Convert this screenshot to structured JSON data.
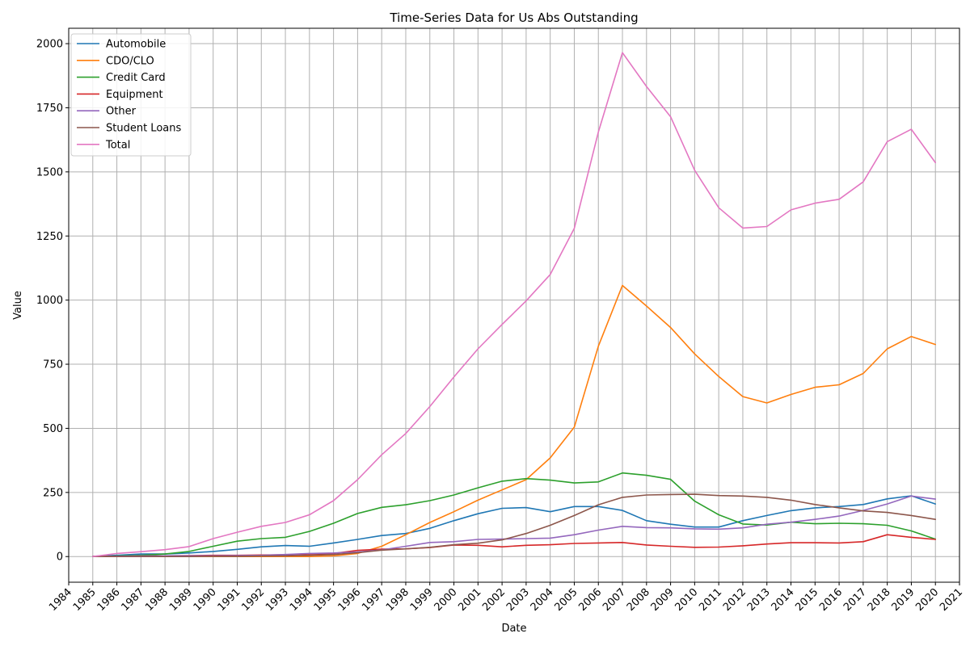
{
  "chart_data": {
    "type": "line",
    "title": "Time-Series Data for Us Abs Outstanding",
    "xlabel": "Date",
    "ylabel": "Value",
    "xlim": [
      1984,
      2021
    ],
    "ylim": [
      -100,
      2060
    ],
    "x_ticks": [
      "1984",
      "1985",
      "1986",
      "1987",
      "1988",
      "1989",
      "1990",
      "1991",
      "1992",
      "1993",
      "1994",
      "1995",
      "1996",
      "1997",
      "1998",
      "1999",
      "2000",
      "2001",
      "2002",
      "2003",
      "2004",
      "2005",
      "2006",
      "2007",
      "2008",
      "2009",
      "2010",
      "2011",
      "2012",
      "2013",
      "2014",
      "2015",
      "2016",
      "2017",
      "2018",
      "2019",
      "2020",
      "2021"
    ],
    "y_ticks": [
      0,
      250,
      500,
      750,
      1000,
      1250,
      1500,
      1750,
      2000
    ],
    "grid": true,
    "legend_position": "top-left",
    "x": [
      1985,
      1986,
      1987,
      1988,
      1989,
      1990,
      1991,
      1992,
      1993,
      1994,
      1995,
      1996,
      1997,
      1998,
      1999,
      2000,
      2001,
      2002,
      2003,
      2004,
      2005,
      2006,
      2007,
      2008,
      2009,
      2010,
      2011,
      2012,
      2013,
      2014,
      2015,
      2016,
      2017,
      2018,
      2019,
      2020
    ],
    "series": [
      {
        "name": "Automobile",
        "color": "#1f77b4",
        "values": [
          1,
          5,
          10,
          10,
          14,
          20,
          28,
          38,
          43,
          40,
          53,
          67,
          82,
          90,
          110,
          140,
          167,
          188,
          191,
          175,
          195,
          195,
          180,
          140,
          126,
          115,
          115,
          140,
          160,
          179,
          190,
          195,
          203,
          225,
          237,
          205
        ]
      },
      {
        "name": "CDO/CLO",
        "color": "#ff7f0e",
        "values": [
          0,
          0,
          0,
          0,
          0,
          0,
          0,
          0,
          0,
          0,
          3,
          12,
          40,
          85,
          133,
          175,
          220,
          260,
          300,
          385,
          505,
          820,
          1057,
          977,
          893,
          790,
          702,
          624,
          599,
          632,
          660,
          670,
          714,
          810,
          858,
          827
        ]
      },
      {
        "name": "Credit Card",
        "color": "#2ca02c",
        "values": [
          0,
          2,
          5,
          10,
          20,
          40,
          60,
          70,
          75,
          98,
          130,
          168,
          192,
          202,
          218,
          240,
          268,
          294,
          304,
          298,
          287,
          291,
          326,
          317,
          301,
          216,
          163,
          127,
          123,
          134,
          128,
          130,
          128,
          122,
          100,
          68
        ]
      },
      {
        "name": "Equipment",
        "color": "#d62728",
        "values": [
          0,
          1,
          2,
          3,
          4,
          5,
          5,
          6,
          7,
          10,
          12,
          24,
          29,
          30,
          35,
          45,
          44,
          38,
          44,
          46,
          51,
          53,
          55,
          45,
          40,
          36,
          37,
          42,
          49,
          54,
          54,
          53,
          58,
          85,
          75,
          67
        ]
      },
      {
        "name": "Other",
        "color": "#9467bd",
        "values": [
          0,
          1,
          2,
          3,
          3,
          3,
          4,
          5,
          8,
          12,
          14,
          18,
          26,
          40,
          55,
          58,
          67,
          68,
          70,
          72,
          85,
          103,
          118,
          113,
          112,
          108,
          107,
          112,
          126,
          134,
          145,
          158,
          180,
          205,
          236,
          224
        ]
      },
      {
        "name": "Student Loans",
        "color": "#8c564b",
        "values": [
          0,
          0,
          0,
          0,
          0,
          1,
          1,
          2,
          3,
          5,
          8,
          15,
          25,
          30,
          36,
          46,
          52,
          65,
          90,
          122,
          160,
          202,
          231,
          240,
          242,
          243,
          238,
          236,
          231,
          220,
          203,
          190,
          178,
          172,
          160,
          145
        ]
      },
      {
        "name": "Total",
        "color": "#e377c2",
        "values": [
          0,
          12,
          19,
          27,
          39,
          70,
          95,
          118,
          133,
          163,
          218,
          300,
          397,
          480,
          585,
          700,
          810,
          905,
          997,
          1100,
          1280,
          1655,
          1965,
          1833,
          1715,
          1506,
          1360,
          1281,
          1287,
          1352,
          1378,
          1393,
          1461,
          1618,
          1666,
          1536
        ]
      }
    ]
  }
}
